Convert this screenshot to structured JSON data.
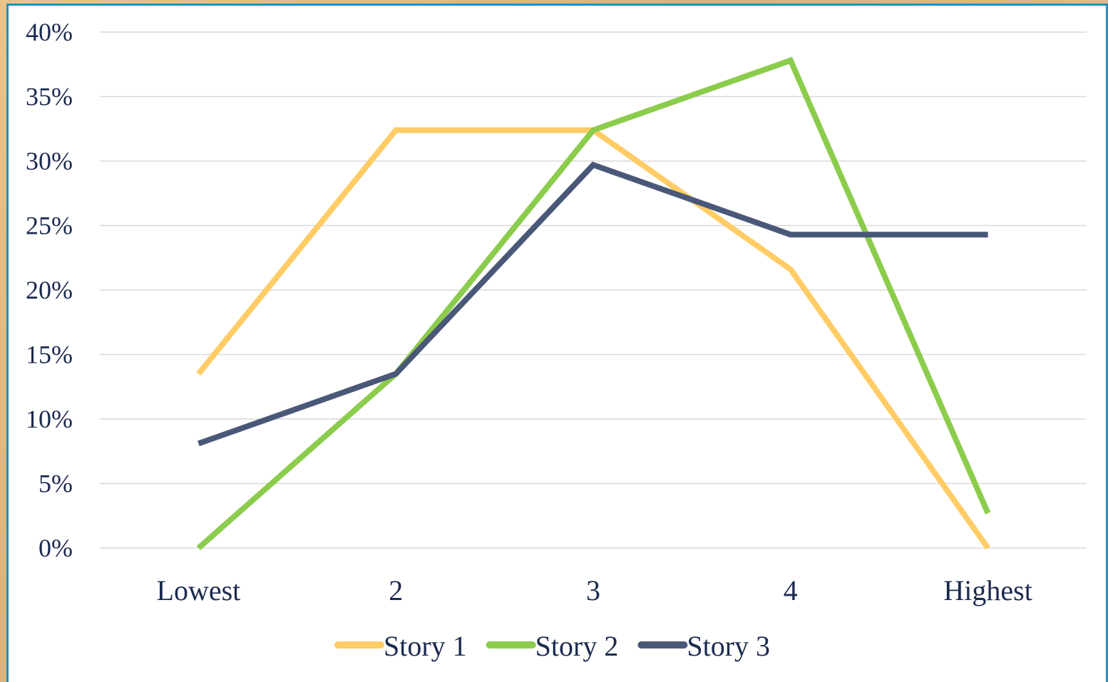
{
  "chart_data": {
    "type": "line",
    "categories": [
      "Lowest",
      "2",
      "3",
      "4",
      "Highest"
    ],
    "series": [
      {
        "name": "Story 1",
        "color": "#ffcc66",
        "values": [
          13.5,
          32.4,
          32.4,
          21.6,
          0
        ]
      },
      {
        "name": "Story 2",
        "color": "#8ccc4c",
        "values": [
          0,
          13.5,
          32.4,
          37.8,
          2.7
        ]
      },
      {
        "name": "Story 3",
        "color": "#4a5878",
        "values": [
          8.1,
          13.5,
          29.7,
          24.3,
          24.3
        ]
      }
    ],
    "yticks": [
      "0%",
      "5%",
      "10%",
      "15%",
      "20%",
      "25%",
      "30%",
      "35%",
      "40%"
    ],
    "ylim": [
      0,
      40
    ],
    "grid": true,
    "legend_position": "bottom",
    "gridline_color": "#d9d9d9",
    "label_color": "#1b2a4e"
  }
}
